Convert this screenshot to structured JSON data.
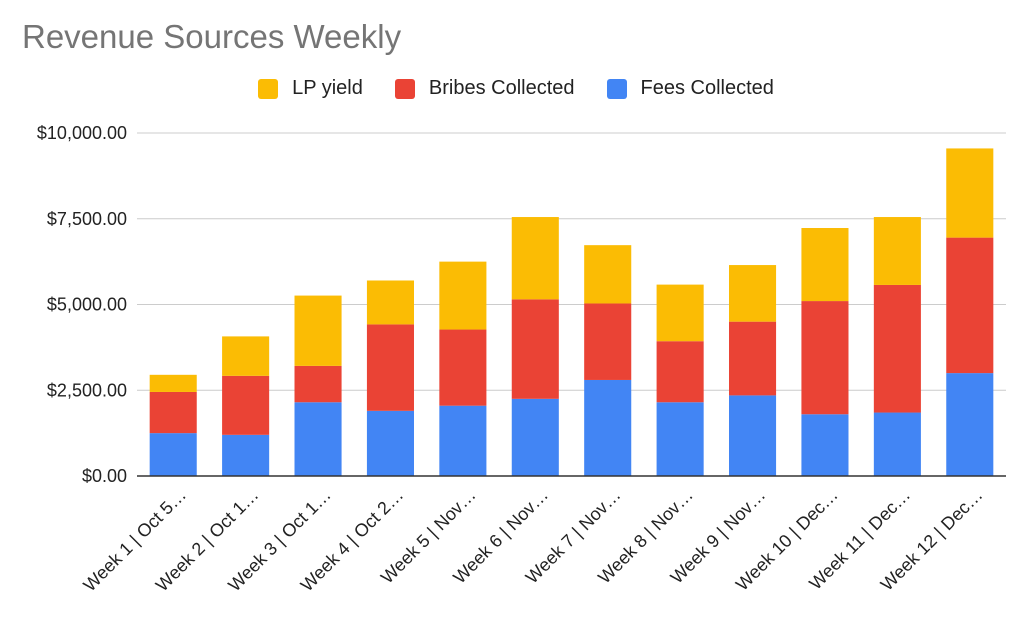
{
  "chart_data": {
    "type": "bar",
    "stacked": true,
    "title": "Revenue Sources Weekly",
    "xlabel": "",
    "ylabel": "",
    "ylim": [
      0,
      10000
    ],
    "yticks": [
      0,
      2500,
      5000,
      7500,
      10000
    ],
    "ytick_labels": [
      "$0.00",
      "$2,500.00",
      "$5,000.00",
      "$7,500.00",
      "$10,000.00"
    ],
    "grid": true,
    "legend_position": "top",
    "categories": [
      "Week 1 | Oct 5…",
      "Week 2 | Oct 1…",
      "Week 3 | Oct 1…",
      "Week 4 | Oct 2…",
      "Week 5 | Nov…",
      "Week 6 | Nov…",
      "Week 7 | Nov…",
      "Week 8 | Nov…",
      "Week 9 | Nov…",
      "Week 10 | Dec…",
      "Week 11 | Dec…",
      "Week 12 | Dec…"
    ],
    "series": [
      {
        "name": "Fees Collected",
        "color": "#4285f4",
        "values": [
          1250,
          1200,
          2150,
          1900,
          2050,
          2250,
          2800,
          2150,
          2350,
          1800,
          1850,
          3000
        ]
      },
      {
        "name": "Bribes Collected",
        "color": "#ea4335",
        "values": [
          1200,
          1720,
          1060,
          2520,
          2220,
          2900,
          2230,
          1780,
          2150,
          3300,
          3720,
          3950
        ]
      },
      {
        "name": "LP yield",
        "color": "#fbbc04",
        "values": [
          500,
          1150,
          2050,
          1280,
          1980,
          2400,
          1700,
          1650,
          1650,
          2130,
          1980,
          2600
        ]
      }
    ],
    "legend_order": [
      "LP yield",
      "Bribes Collected",
      "Fees Collected"
    ]
  }
}
